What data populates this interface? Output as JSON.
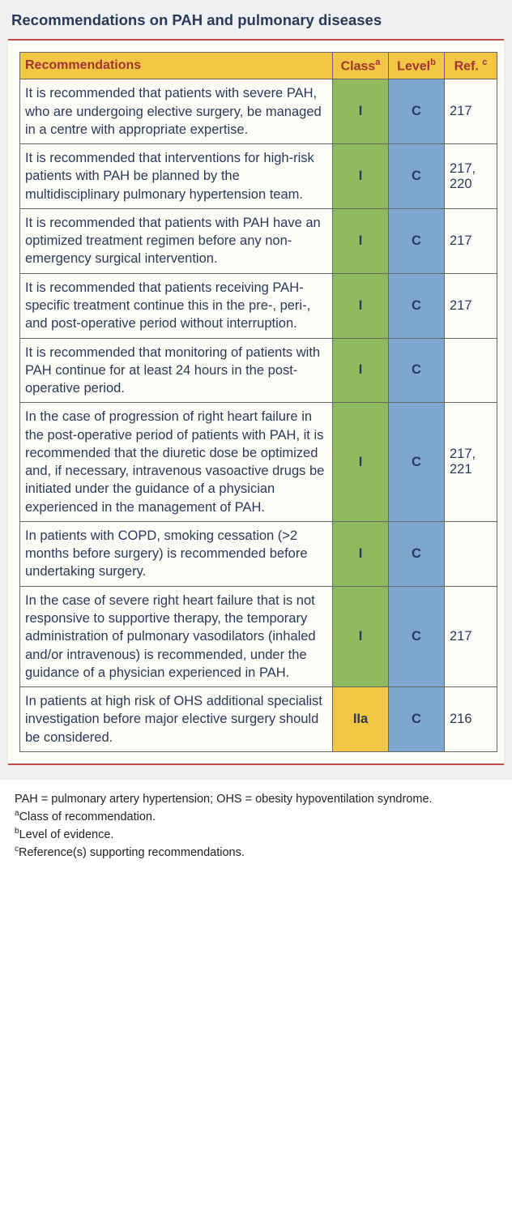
{
  "title": "Recommendations on PAH and pulmonary diseases",
  "headers": {
    "rec": "Recommendations",
    "cls": "Class",
    "cls_sup": "a",
    "lvl": "Level",
    "lvl_sup": "b",
    "ref": "Ref.",
    "ref_sup": "c"
  },
  "colors": {
    "class_I": "#8fbb5e",
    "class_IIa": "#f2c744",
    "level_C": "#7ea6cf"
  },
  "rows": [
    {
      "rec": "It is recommended that patients with severe PAH, who are undergoing elective surgery, be managed in a centre with appropriate expertise.",
      "cls": "I",
      "cls_color": "class_I",
      "lvl": "C",
      "lvl_color": "level_C",
      "ref": "217"
    },
    {
      "rec": "It is recommended that interventions for high-risk patients with PAH be planned by the multidisciplinary pulmonary hypertension team.",
      "cls": "I",
      "cls_color": "class_I",
      "lvl": "C",
      "lvl_color": "level_C",
      "ref": "217, 220"
    },
    {
      "rec": "It is recommended that patients with PAH have an optimized treatment regimen before any non-emergency surgical intervention.",
      "cls": "I",
      "cls_color": "class_I",
      "lvl": "C",
      "lvl_color": "level_C",
      "ref": "217"
    },
    {
      "rec": "It is recommended that patients receiving PAH-specific treatment continue this in the pre-, peri-, and post-operative period without interruption.",
      "cls": "I",
      "cls_color": "class_I",
      "lvl": "C",
      "lvl_color": "level_C",
      "ref": "217"
    },
    {
      "rec": "It is recommended that monitoring of patients with PAH continue for at least 24 hours in the post-operative period.",
      "cls": "I",
      "cls_color": "class_I",
      "lvl": "C",
      "lvl_color": "level_C",
      "ref": ""
    },
    {
      "rec": "In the case of progression of right heart failure in the post-operative period of patients with PAH, it is recommended that the diuretic dose be optimized and, if necessary, intravenous vasoactive drugs be initiated under the guidance of a physician experienced in the management of PAH.",
      "cls": "I",
      "cls_color": "class_I",
      "lvl": "C",
      "lvl_color": "level_C",
      "ref": "217, 221"
    },
    {
      "rec": "In patients with COPD, smoking cessation (>2 months before surgery) is recommended before undertaking surgery.",
      "cls": "I",
      "cls_color": "class_I",
      "lvl": "C",
      "lvl_color": "level_C",
      "ref": ""
    },
    {
      "rec": "In the case of severe right heart failure that is not responsive to supportive therapy, the temporary administration of pulmonary vasodilators (inhaled and/or intravenous) is recommended, under the guidance of a physician experienced in PAH.",
      "cls": "I",
      "cls_color": "class_I",
      "lvl": "C",
      "lvl_color": "level_C",
      "ref": "217"
    },
    {
      "rec": "In patients at high risk of OHS additional specialist investigation before major elective surgery should be considered.",
      "cls": "IIa",
      "cls_color": "class_IIa",
      "lvl": "C",
      "lvl_color": "level_C",
      "ref": "216"
    }
  ],
  "footer": {
    "abbr": "PAH = pulmonary artery hypertension; OHS = obesity hypoventilation syndrome.",
    "a": "Class of recommendation.",
    "b": "Level of evidence.",
    "c": "Reference(s) supporting recommendations."
  }
}
